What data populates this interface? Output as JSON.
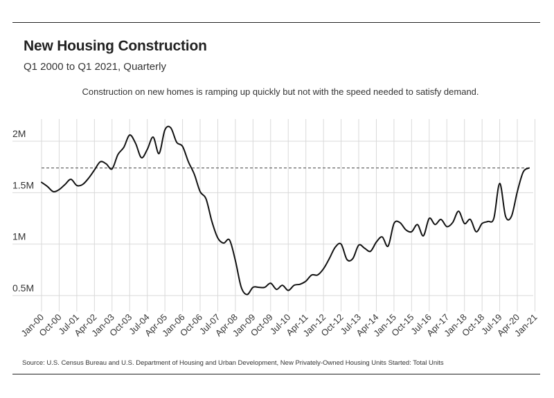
{
  "header": {
    "title": "New Housing Construction",
    "subtitle": "Q1 2000 to Q1 2021, Quarterly"
  },
  "annotation": "Construction on new homes is ramping up quickly but not with the speed needed to satisfy demand.",
  "source": "Source:  U.S. Census Bureau and U.S. Department of Housing and Urban Development, New Privately-Owned Housing Units Started: Total Units",
  "chart_data": {
    "type": "line",
    "title": "New Housing Construction",
    "subtitle": "Q1 2000 to Q1 2021, Quarterly",
    "xlabel": "",
    "ylabel": "",
    "ylim": [
      0.4,
      2.25
    ],
    "yticks": [
      {
        "value": 0.5,
        "label": "0.5M"
      },
      {
        "value": 1.0,
        "label": "1M"
      },
      {
        "value": 1.5,
        "label": "1.5M"
      },
      {
        "value": 2.0,
        "label": "2M"
      }
    ],
    "xtick_labels": [
      "Jan-00",
      "Oct-00",
      "Jul-01",
      "Apr-02",
      "Jan-03",
      "Oct-03",
      "Jul-04",
      "Apr-05",
      "Jan-06",
      "Oct-06",
      "Jul-07",
      "Apr-08",
      "Jan-09",
      "Oct-09",
      "Jul-10",
      "Apr-11",
      "Jan-12",
      "Oct-12",
      "Jul-13",
      "Apr-14",
      "Jan-15",
      "Oct-15",
      "Jul-16",
      "Apr-17",
      "Jan-18",
      "Oct-18",
      "Jul-19",
      "Apr-20",
      "Jan-21"
    ],
    "reference_line": {
      "value": 1.74,
      "style": "dashed"
    },
    "grid": true,
    "series": [
      {
        "name": "",
        "color": "#111111",
        "values": [
          1.6,
          1.56,
          1.51,
          1.53,
          1.58,
          1.63,
          1.57,
          1.58,
          1.64,
          1.72,
          1.8,
          1.78,
          1.73,
          1.87,
          1.94,
          2.06,
          1.98,
          1.84,
          1.92,
          2.04,
          1.88,
          2.11,
          2.13,
          1.99,
          1.95,
          1.8,
          1.68,
          1.51,
          1.44,
          1.22,
          1.06,
          1.01,
          1.04,
          0.84,
          0.58,
          0.51,
          0.58,
          0.58,
          0.58,
          0.62,
          0.56,
          0.6,
          0.55,
          0.6,
          0.61,
          0.64,
          0.7,
          0.7,
          0.76,
          0.86,
          0.97,
          1.0,
          0.85,
          0.86,
          0.99,
          0.96,
          0.93,
          1.02,
          1.07,
          0.98,
          1.2,
          1.21,
          1.14,
          1.12,
          1.19,
          1.08,
          1.25,
          1.19,
          1.24,
          1.17,
          1.21,
          1.32,
          1.2,
          1.24,
          1.12,
          1.2,
          1.22,
          1.25,
          1.59,
          1.27,
          1.27,
          1.51,
          1.7,
          1.74
        ]
      }
    ]
  }
}
